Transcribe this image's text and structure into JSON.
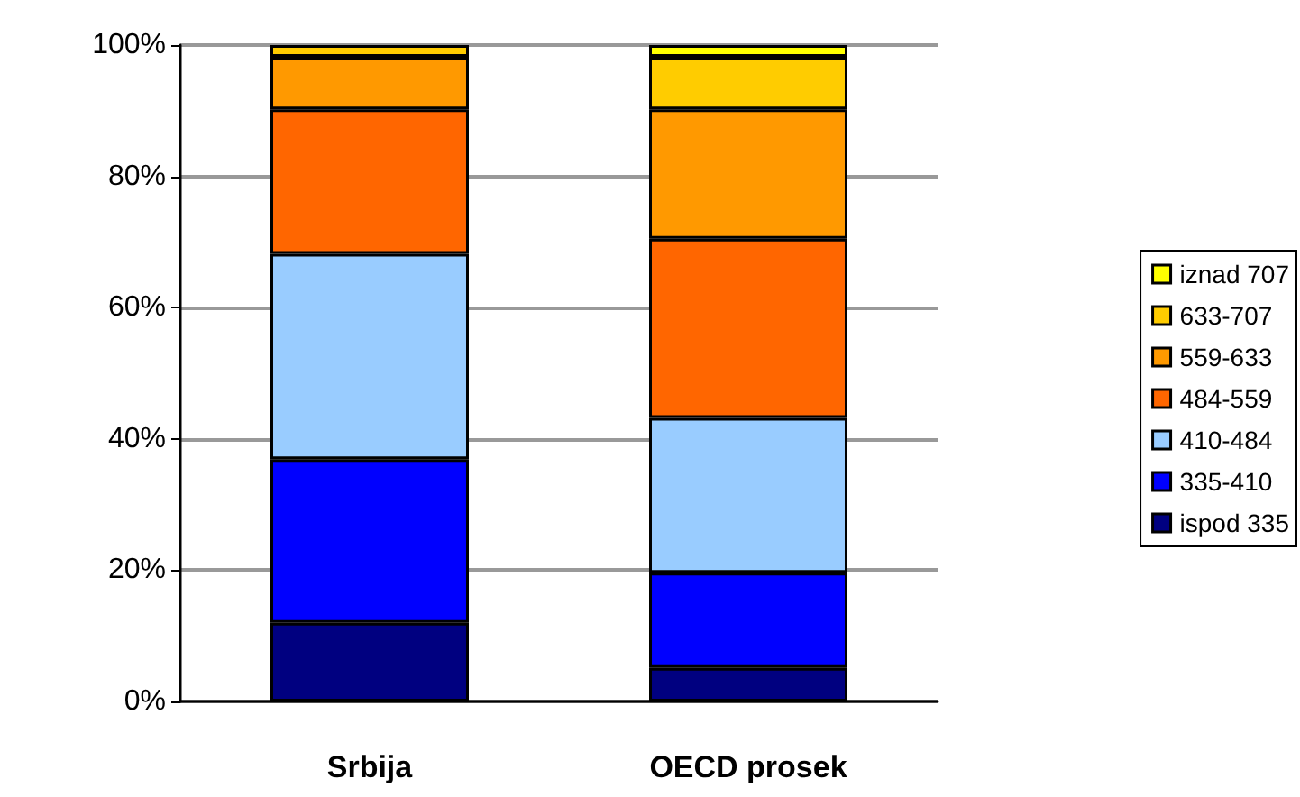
{
  "chart_data": {
    "type": "bar",
    "stacked": true,
    "categories": [
      "Srbija",
      "OECD prosek"
    ],
    "series": [
      {
        "name": "ispod 335",
        "color": "#000080",
        "values": [
          12,
          5.1
        ]
      },
      {
        "name": "335-410",
        "color": "#0000ff",
        "values": [
          24.9,
          14.5
        ]
      },
      {
        "name": "410-484",
        "color": "#99ccff",
        "values": [
          31.3,
          23.6
        ]
      },
      {
        "name": "484-559",
        "color": "#ff6600",
        "values": [
          22,
          27.3
        ]
      },
      {
        "name": "559-633",
        "color": "#ff9900",
        "values": [
          8,
          19.7
        ]
      },
      {
        "name": "633-707",
        "color": "#ffcc00",
        "values": [
          1.8,
          8
        ]
      },
      {
        "name": "iznad 707",
        "color": "#ffff00",
        "values": [
          null,
          1.8
        ]
      }
    ],
    "ylim": [
      0,
      100
    ],
    "yticks": [
      {
        "value": 0,
        "label": "0%"
      },
      {
        "value": 20,
        "label": "20%"
      },
      {
        "value": 40,
        "label": "40%"
      },
      {
        "value": 60,
        "label": "60%"
      },
      {
        "value": 80,
        "label": "80%"
      },
      {
        "value": 100,
        "label": "100%"
      }
    ],
    "grid": "y",
    "legend": "right"
  }
}
